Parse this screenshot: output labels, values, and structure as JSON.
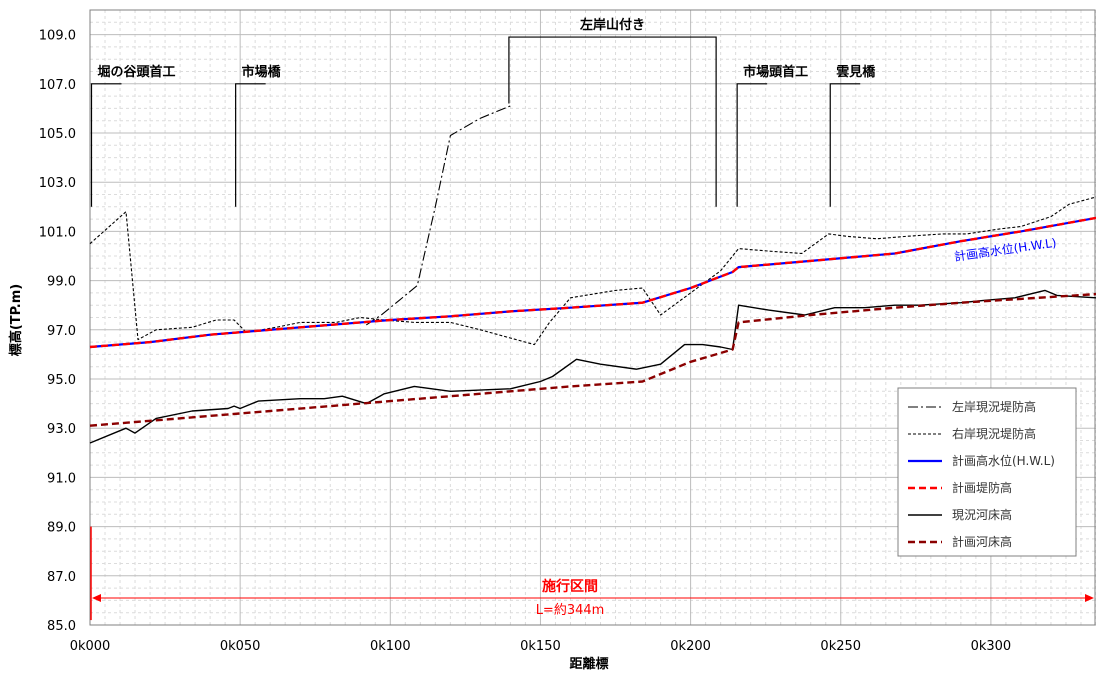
{
  "chart_data": {
    "type": "line",
    "title": "",
    "xlabel": "距離標",
    "ylabel": "標高(TP.m)",
    "xlim": [
      0,
      335
    ],
    "ylim": [
      85,
      110
    ],
    "x_ticks": [
      {
        "x": 0,
        "label": "0k000"
      },
      {
        "x": 50,
        "label": "0k050"
      },
      {
        "x": 100,
        "label": "0k100"
      },
      {
        "x": 150,
        "label": "0k150"
      },
      {
        "x": 200,
        "label": "0k200"
      },
      {
        "x": 250,
        "label": "0k250"
      },
      {
        "x": 300,
        "label": "0k300"
      }
    ],
    "y_ticks": [
      {
        "y": 85,
        "label": "85.0"
      },
      {
        "y": 87,
        "label": "87.0"
      },
      {
        "y": 89,
        "label": "89.0"
      },
      {
        "y": 91,
        "label": "91.0"
      },
      {
        "y": 93,
        "label": "93.0"
      },
      {
        "y": 95,
        "label": "95.0"
      },
      {
        "y": 97,
        "label": "97.0"
      },
      {
        "y": 99,
        "label": "99.0"
      },
      {
        "y": 101,
        "label": "101.0"
      },
      {
        "y": 103,
        "label": "103.0"
      },
      {
        "y": 105,
        "label": "105.0"
      },
      {
        "y": 107,
        "label": "107.0"
      },
      {
        "y": 109,
        "label": "109.0"
      }
    ],
    "grid": true,
    "legend_position": "bottom-right",
    "series": [
      {
        "name": "左岸現況堤防高",
        "color": "#000000",
        "style": "dashdot",
        "points": [
          [
            92,
            97.2
          ],
          [
            97,
            97.6
          ],
          [
            103,
            98.2
          ],
          [
            109,
            98.8
          ],
          [
            115,
            102.0
          ],
          [
            120,
            104.9
          ],
          [
            130,
            105.6
          ],
          [
            140,
            106.1
          ]
        ]
      },
      {
        "name": "右岸現況堤防高",
        "color": "#000000",
        "style": "dotted",
        "points": [
          [
            0,
            100.5
          ],
          [
            12,
            101.8
          ],
          [
            16,
            96.6
          ],
          [
            22,
            97.0
          ],
          [
            34,
            97.1
          ],
          [
            42,
            97.4
          ],
          [
            48,
            97.4
          ],
          [
            52,
            96.9
          ],
          [
            62,
            97.1
          ],
          [
            70,
            97.3
          ],
          [
            82,
            97.3
          ],
          [
            90,
            97.5
          ],
          [
            98,
            97.4
          ],
          [
            108,
            97.3
          ],
          [
            120,
            97.3
          ],
          [
            130,
            97.0
          ],
          [
            139,
            96.7
          ],
          [
            148,
            96.4
          ],
          [
            153,
            97.3
          ],
          [
            160,
            98.3
          ],
          [
            175,
            98.6
          ],
          [
            184,
            98.7
          ],
          [
            190,
            97.6
          ],
          [
            200,
            98.5
          ],
          [
            210,
            99.4
          ],
          [
            216,
            100.3
          ],
          [
            226,
            100.2
          ],
          [
            237,
            100.1
          ],
          [
            246,
            100.9
          ],
          [
            252,
            100.8
          ],
          [
            262,
            100.7
          ],
          [
            272,
            100.8
          ],
          [
            284,
            100.9
          ],
          [
            292,
            100.9
          ],
          [
            303,
            101.1
          ],
          [
            310,
            101.2
          ],
          [
            320,
            101.6
          ],
          [
            326,
            102.1
          ],
          [
            335,
            102.4
          ]
        ]
      },
      {
        "name": "計画高水位(H.W.L)",
        "color": "#0000ff",
        "style": "solid",
        "points": [
          [
            0,
            96.3
          ],
          [
            20,
            96.5
          ],
          [
            40,
            96.8
          ],
          [
            60,
            97.0
          ],
          [
            80,
            97.2
          ],
          [
            100,
            97.4
          ],
          [
            120,
            97.55
          ],
          [
            140,
            97.75
          ],
          [
            160,
            97.9
          ],
          [
            184,
            98.1
          ],
          [
            200,
            98.7
          ],
          [
            214,
            99.35
          ],
          [
            216,
            99.55
          ],
          [
            240,
            99.8
          ],
          [
            268,
            100.1
          ],
          [
            290,
            100.6
          ],
          [
            310,
            101.0
          ],
          [
            335,
            101.55
          ]
        ]
      },
      {
        "name": "計画堤防高",
        "color": "#ff0000",
        "style": "dashed",
        "points": [
          [
            0,
            96.3
          ],
          [
            20,
            96.5
          ],
          [
            40,
            96.8
          ],
          [
            60,
            97.0
          ],
          [
            80,
            97.2
          ],
          [
            100,
            97.4
          ],
          [
            120,
            97.55
          ],
          [
            140,
            97.75
          ],
          [
            160,
            97.9
          ],
          [
            184,
            98.1
          ],
          [
            200,
            98.7
          ],
          [
            214,
            99.35
          ],
          [
            216,
            99.55
          ],
          [
            240,
            99.8
          ],
          [
            268,
            100.1
          ],
          [
            290,
            100.6
          ],
          [
            310,
            101.0
          ],
          [
            335,
            101.55
          ]
        ]
      },
      {
        "name": "現況河床高",
        "color": "#000000",
        "style": "solid",
        "points": [
          [
            0,
            92.4
          ],
          [
            12,
            93.0
          ],
          [
            15,
            92.8
          ],
          [
            22,
            93.4
          ],
          [
            34,
            93.7
          ],
          [
            46,
            93.8
          ],
          [
            48,
            93.9
          ],
          [
            50,
            93.8
          ],
          [
            56,
            94.1
          ],
          [
            70,
            94.2
          ],
          [
            78,
            94.2
          ],
          [
            84,
            94.3
          ],
          [
            92,
            94.0
          ],
          [
            98,
            94.4
          ],
          [
            108,
            94.7
          ],
          [
            120,
            94.5
          ],
          [
            140,
            94.6
          ],
          [
            150,
            94.9
          ],
          [
            154,
            95.1
          ],
          [
            162,
            95.8
          ],
          [
            170,
            95.6
          ],
          [
            182,
            95.4
          ],
          [
            190,
            95.6
          ],
          [
            198,
            96.4
          ],
          [
            204,
            96.4
          ],
          [
            210,
            96.3
          ],
          [
            214,
            96.2
          ],
          [
            216,
            98.0
          ],
          [
            226,
            97.8
          ],
          [
            238,
            97.6
          ],
          [
            248,
            97.9
          ],
          [
            258,
            97.9
          ],
          [
            268,
            98.0
          ],
          [
            276,
            98.0
          ],
          [
            290,
            98.1
          ],
          [
            298,
            98.2
          ],
          [
            308,
            98.3
          ],
          [
            318,
            98.6
          ],
          [
            322,
            98.4
          ],
          [
            335,
            98.3
          ]
        ]
      },
      {
        "name": "計画河床高",
        "color": "#8b0000",
        "style": "dashed",
        "points": [
          [
            0,
            93.1
          ],
          [
            20,
            93.3
          ],
          [
            40,
            93.5
          ],
          [
            60,
            93.7
          ],
          [
            80,
            93.9
          ],
          [
            100,
            94.1
          ],
          [
            120,
            94.3
          ],
          [
            140,
            94.5
          ],
          [
            160,
            94.7
          ],
          [
            184,
            94.9
          ],
          [
            200,
            95.7
          ],
          [
            214,
            96.2
          ],
          [
            216,
            97.3
          ],
          [
            240,
            97.6
          ],
          [
            268,
            97.9
          ],
          [
            290,
            98.1
          ],
          [
            335,
            98.45
          ]
        ]
      }
    ],
    "annotations": [
      {
        "label": "堀の谷頭首工",
        "x": 0.5,
        "y_top": 107.0,
        "y_bottom": 102.0
      },
      {
        "label": "市場橋",
        "x": 48.5,
        "y_top": 107.0,
        "y_bottom": 102.0
      },
      {
        "label": "市場頭首工",
        "x": 215.5,
        "y_top": 107.0,
        "y_bottom": 102.0
      },
      {
        "label": "雲見橋",
        "x": 246.5,
        "y_top": 107.0,
        "y_bottom": 102.0
      }
    ],
    "range_annotation": {
      "label": "左岸山付き",
      "x_start": 139.5,
      "x_end": 208.5,
      "y_top": 108.9,
      "y_bottom": 106.2,
      "y_bottom_right": 102.0
    },
    "section": {
      "label": "施行区間",
      "sublabel": "L=約344m",
      "x_start": 0,
      "x_end": 335,
      "y": 86.1,
      "color": "#ff0000"
    },
    "series_label": {
      "text": "計画高水位(H.W.L)",
      "x": 288,
      "y": 99.8,
      "color": "#0000ff"
    }
  }
}
